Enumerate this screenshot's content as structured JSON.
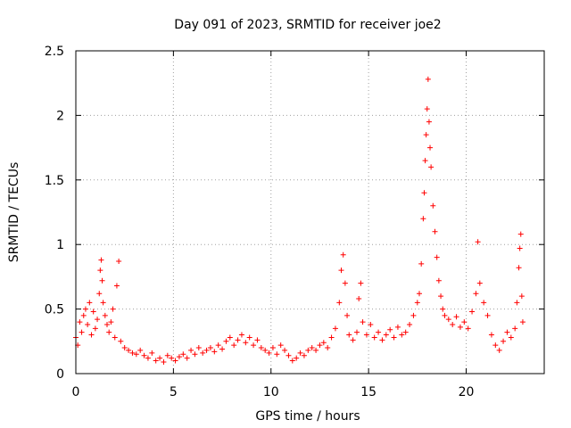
{
  "chart_data": {
    "type": "scatter",
    "title": "Day 091 of 2023, SRMTID for receiver joe2",
    "xlabel": "GPS time / hours",
    "ylabel": "SRMTID / TECUs",
    "xlim": [
      0,
      24
    ],
    "ylim": [
      0,
      2.5
    ],
    "xticks": [
      0,
      5,
      10,
      15,
      20
    ],
    "xtick_labels": [
      "0",
      "5",
      "10",
      "15",
      "20"
    ],
    "yticks": [
      0,
      0.5,
      1,
      1.5,
      2,
      2.5
    ],
    "ytick_labels": [
      "0",
      "0.5",
      "1",
      "1.5",
      "2",
      "2.5"
    ],
    "grid": true,
    "marker": "+",
    "series": [
      {
        "name": "SRMTID",
        "color": "#ff0000",
        "points": [
          [
            0.0,
            0.28
          ],
          [
            0.1,
            0.22
          ],
          [
            0.2,
            0.4
          ],
          [
            0.3,
            0.32
          ],
          [
            0.4,
            0.45
          ],
          [
            0.5,
            0.5
          ],
          [
            0.6,
            0.38
          ],
          [
            0.7,
            0.55
          ],
          [
            0.8,
            0.3
          ],
          [
            0.9,
            0.48
          ],
          [
            1.0,
            0.35
          ],
          [
            1.1,
            0.42
          ],
          [
            1.2,
            0.62
          ],
          [
            1.25,
            0.8
          ],
          [
            1.3,
            0.88
          ],
          [
            1.35,
            0.72
          ],
          [
            1.4,
            0.55
          ],
          [
            1.5,
            0.45
          ],
          [
            1.6,
            0.38
          ],
          [
            1.7,
            0.32
          ],
          [
            1.8,
            0.4
          ],
          [
            1.9,
            0.5
          ],
          [
            2.0,
            0.28
          ],
          [
            2.1,
            0.68
          ],
          [
            2.2,
            0.87
          ],
          [
            2.3,
            0.25
          ],
          [
            2.5,
            0.2
          ],
          [
            2.7,
            0.18
          ],
          [
            2.9,
            0.16
          ],
          [
            3.1,
            0.15
          ],
          [
            3.3,
            0.18
          ],
          [
            3.5,
            0.14
          ],
          [
            3.7,
            0.12
          ],
          [
            3.9,
            0.16
          ],
          [
            4.1,
            0.1
          ],
          [
            4.3,
            0.12
          ],
          [
            4.5,
            0.09
          ],
          [
            4.7,
            0.14
          ],
          [
            4.9,
            0.12
          ],
          [
            5.1,
            0.1
          ],
          [
            5.3,
            0.13
          ],
          [
            5.5,
            0.15
          ],
          [
            5.7,
            0.12
          ],
          [
            5.9,
            0.18
          ],
          [
            6.1,
            0.15
          ],
          [
            6.3,
            0.2
          ],
          [
            6.5,
            0.16
          ],
          [
            6.7,
            0.18
          ],
          [
            6.9,
            0.2
          ],
          [
            7.1,
            0.17
          ],
          [
            7.3,
            0.22
          ],
          [
            7.5,
            0.19
          ],
          [
            7.7,
            0.25
          ],
          [
            7.9,
            0.28
          ],
          [
            8.1,
            0.22
          ],
          [
            8.3,
            0.26
          ],
          [
            8.5,
            0.3
          ],
          [
            8.7,
            0.24
          ],
          [
            8.9,
            0.28
          ],
          [
            9.1,
            0.22
          ],
          [
            9.3,
            0.26
          ],
          [
            9.5,
            0.2
          ],
          [
            9.7,
            0.18
          ],
          [
            9.9,
            0.16
          ],
          [
            10.1,
            0.2
          ],
          [
            10.3,
            0.15
          ],
          [
            10.5,
            0.22
          ],
          [
            10.7,
            0.18
          ],
          [
            10.9,
            0.14
          ],
          [
            11.1,
            0.1
          ],
          [
            11.3,
            0.12
          ],
          [
            11.5,
            0.16
          ],
          [
            11.7,
            0.14
          ],
          [
            11.9,
            0.18
          ],
          [
            12.1,
            0.2
          ],
          [
            12.3,
            0.18
          ],
          [
            12.5,
            0.22
          ],
          [
            12.7,
            0.24
          ],
          [
            12.9,
            0.2
          ],
          [
            13.1,
            0.28
          ],
          [
            13.3,
            0.35
          ],
          [
            13.5,
            0.55
          ],
          [
            13.6,
            0.8
          ],
          [
            13.7,
            0.92
          ],
          [
            13.8,
            0.7
          ],
          [
            13.9,
            0.45
          ],
          [
            14.0,
            0.3
          ],
          [
            14.2,
            0.26
          ],
          [
            14.4,
            0.32
          ],
          [
            14.5,
            0.58
          ],
          [
            14.6,
            0.7
          ],
          [
            14.7,
            0.4
          ],
          [
            14.9,
            0.3
          ],
          [
            15.1,
            0.38
          ],
          [
            15.3,
            0.28
          ],
          [
            15.5,
            0.32
          ],
          [
            15.7,
            0.26
          ],
          [
            15.9,
            0.3
          ],
          [
            16.1,
            0.34
          ],
          [
            16.3,
            0.28
          ],
          [
            16.5,
            0.36
          ],
          [
            16.7,
            0.3
          ],
          [
            16.9,
            0.32
          ],
          [
            17.1,
            0.38
          ],
          [
            17.3,
            0.45
          ],
          [
            17.5,
            0.55
          ],
          [
            17.6,
            0.62
          ],
          [
            17.7,
            0.85
          ],
          [
            17.8,
            1.2
          ],
          [
            17.85,
            1.4
          ],
          [
            17.9,
            1.65
          ],
          [
            17.95,
            1.85
          ],
          [
            18.0,
            2.05
          ],
          [
            18.05,
            2.28
          ],
          [
            18.1,
            1.95
          ],
          [
            18.15,
            1.75
          ],
          [
            18.2,
            1.6
          ],
          [
            18.3,
            1.3
          ],
          [
            18.4,
            1.1
          ],
          [
            18.5,
            0.9
          ],
          [
            18.6,
            0.72
          ],
          [
            18.7,
            0.6
          ],
          [
            18.8,
            0.5
          ],
          [
            18.9,
            0.45
          ],
          [
            19.1,
            0.42
          ],
          [
            19.3,
            0.38
          ],
          [
            19.5,
            0.44
          ],
          [
            19.7,
            0.36
          ],
          [
            19.9,
            0.4
          ],
          [
            20.1,
            0.35
          ],
          [
            20.3,
            0.48
          ],
          [
            20.5,
            0.62
          ],
          [
            20.6,
            1.02
          ],
          [
            20.7,
            0.7
          ],
          [
            20.9,
            0.55
          ],
          [
            21.1,
            0.45
          ],
          [
            21.3,
            0.3
          ],
          [
            21.5,
            0.22
          ],
          [
            21.7,
            0.18
          ],
          [
            21.9,
            0.25
          ],
          [
            22.1,
            0.32
          ],
          [
            22.3,
            0.28
          ],
          [
            22.5,
            0.35
          ],
          [
            22.6,
            0.55
          ],
          [
            22.7,
            0.82
          ],
          [
            22.75,
            0.97
          ],
          [
            22.8,
            1.08
          ],
          [
            22.85,
            0.6
          ],
          [
            22.9,
            0.4
          ]
        ]
      }
    ]
  }
}
